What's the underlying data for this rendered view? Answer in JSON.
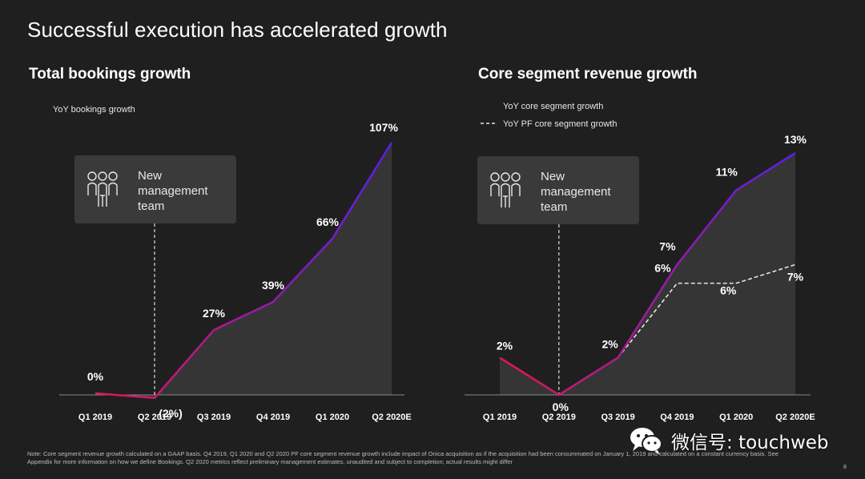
{
  "slide": {
    "title": "Successful execution has accelerated growth",
    "footnote": "Note: Core segment revenue growth calculated on a GAAP basis. Q4 2019, Q1 2020 and Q2 2020 PF core segment revenue growth include impact of Onica acquisition as if the acquisition had been consummated on January 1, 2019 and calculated on a constant currency basis. See Appendix for more information on how we define Bookings. Q2 2020 metrics reflect preliminary management estimates, unaudited and subject to completion; actual results might differ",
    "page_number": "8"
  },
  "callout": {
    "lines": [
      "New",
      "management",
      "team"
    ],
    "icon": "people-group-icon"
  },
  "watermark": {
    "text": "微信号: touchweb",
    "icon": "wechat-icon"
  },
  "colors": {
    "background": "#1f1f1f",
    "gradient_start": "#e0184e",
    "gradient_end": "#5a1ee8",
    "area_fill": "#3a3a3a",
    "axis": "#8a8a8a",
    "callout_bg": "#3a3a3a"
  },
  "chart_data": [
    {
      "type": "line",
      "title": "Total bookings growth",
      "categories": [
        "Q1 2019",
        "Q2 2019",
        "Q3 2019",
        "Q4 2019",
        "Q1 2020",
        "Q2 2020E"
      ],
      "series": [
        {
          "name": "YoY bookings growth",
          "values": [
            0,
            -2,
            27,
            39,
            66,
            107
          ],
          "labels": [
            "0%",
            "(2%)",
            "27%",
            "39%",
            "66%",
            "107%"
          ],
          "style": "gradient"
        }
      ],
      "ylim": [
        -2,
        107
      ],
      "annotation_category": "Q2 2019",
      "grid": false,
      "legend": "top-left"
    },
    {
      "type": "line",
      "title": "Core segment revenue growth",
      "categories": [
        "Q1 2019",
        "Q2 2019",
        "Q3 2019",
        "Q4 2019",
        "Q1 2020",
        "Q2 2020E"
      ],
      "series": [
        {
          "name": "YoY core segment growth",
          "values": [
            2,
            0,
            2,
            7,
            11,
            13
          ],
          "labels": [
            "2%",
            "0%",
            "2%",
            "7%",
            "11%",
            "13%"
          ],
          "style": "gradient"
        },
        {
          "name": "YoY PF core segment growth",
          "values": [
            2,
            0,
            2,
            6,
            6,
            7
          ],
          "labels": [
            "",
            "",
            "",
            "6%",
            "6%",
            "7%"
          ],
          "style": "dashed"
        }
      ],
      "ylim": [
        0,
        13
      ],
      "annotation_category": "Q2 2019",
      "grid": false,
      "legend": "top-left"
    }
  ]
}
